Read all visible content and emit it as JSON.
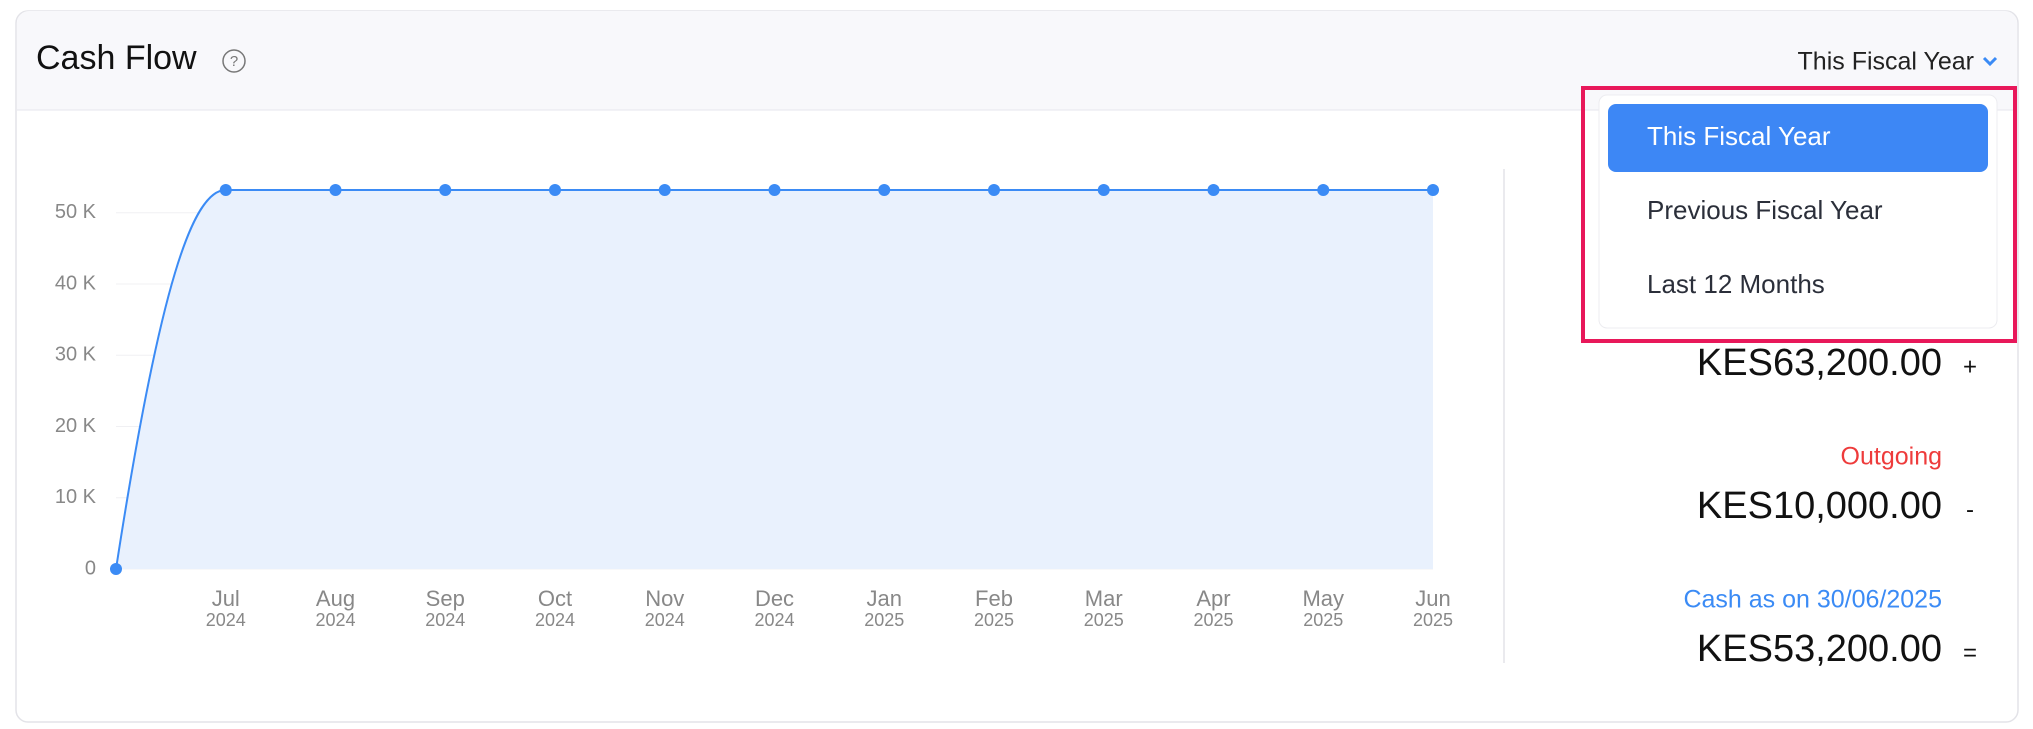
{
  "header": {
    "title": "Cash Flow",
    "help_icon": "?",
    "filter": "This Fiscal Year"
  },
  "dropdown": {
    "options": [
      "This Fiscal Year",
      "Previous Fiscal Year",
      "Last 12 Months"
    ],
    "selected": 0
  },
  "chart_data": {
    "type": "area",
    "categories": [
      null,
      [
        "Jul",
        "2024"
      ],
      [
        "Aug",
        "2024"
      ],
      [
        "Sep",
        "2024"
      ],
      [
        "Oct",
        "2024"
      ],
      [
        "Nov",
        "2024"
      ],
      [
        "Dec",
        "2024"
      ],
      [
        "Jan",
        "2025"
      ],
      [
        "Feb",
        "2025"
      ],
      [
        "Mar",
        "2025"
      ],
      [
        "Apr",
        "2025"
      ],
      [
        "May",
        "2025"
      ],
      [
        "Jun",
        "2025"
      ]
    ],
    "values": [
      0,
      53200,
      53200,
      53200,
      53200,
      53200,
      53200,
      53200,
      53200,
      53200,
      53200,
      53200,
      53200
    ],
    "color": "#3b8bf5",
    "fill": "#e9f1fd",
    "ylim": [
      0,
      56000
    ],
    "yticks": [
      0,
      {
        "value": 10000,
        "label": "10 K"
      },
      {
        "value": 20000,
        "label": "20 K"
      },
      {
        "value": 30000,
        "label": "30 K"
      },
      {
        "value": 40000,
        "label": "40 K"
      },
      {
        "value": 50000,
        "label": "50 K"
      }
    ],
    "grid": true
  },
  "summary": [
    {
      "amount": "KES63,200.00",
      "sign": "+"
    },
    {
      "label": "Outgoing",
      "amount": "KES10,000.00",
      "sign": "-"
    },
    {
      "label": "Cash as on 30/06/2025",
      "amount": "KES53,200.00",
      "sign": "="
    }
  ]
}
